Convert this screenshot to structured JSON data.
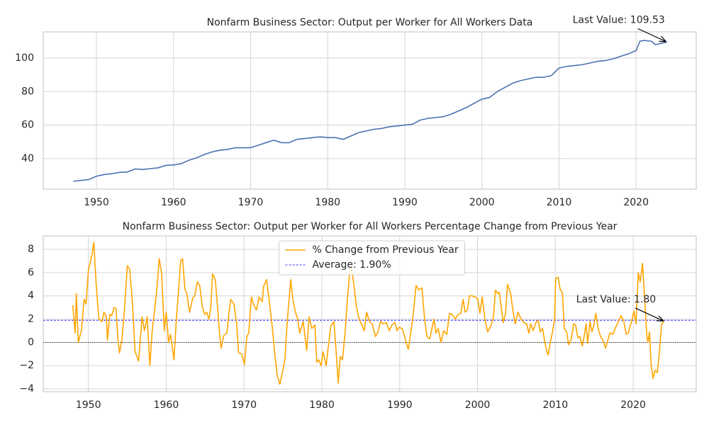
{
  "chart_data": [
    {
      "type": "line",
      "title": "Nonfarm Business Sector: Output per Worker for All Workers Data",
      "x": [
        1947,
        1948,
        1949,
        1950,
        1951,
        1952,
        1953,
        1954,
        1955,
        1956,
        1957,
        1958,
        1959,
        1960,
        1961,
        1962,
        1963,
        1964,
        1965,
        1966,
        1967,
        1968,
        1969,
        1970,
        1971,
        1972,
        1973,
        1974,
        1975,
        1976,
        1977,
        1978,
        1979,
        1980,
        1981,
        1982,
        1983,
        1984,
        1985,
        1986,
        1987,
        1988,
        1989,
        1990,
        1991,
        1992,
        1993,
        1994,
        1995,
        1996,
        1997,
        1998,
        1999,
        2000,
        2001,
        2002,
        2003,
        2004,
        2005,
        2006,
        2007,
        2008,
        2009,
        2010,
        2011,
        2012,
        2013,
        2014,
        2015,
        2016,
        2017,
        2018,
        2019,
        2020,
        2020.5,
        2021,
        2022,
        2022.5,
        2023,
        2024
      ],
      "series": [
        {
          "color": "#4c72b0",
          "values": [
            26.5,
            27,
            27.5,
            29.5,
            30.5,
            31,
            31.8,
            32,
            33.8,
            33.5,
            34,
            34.5,
            36,
            36.2,
            37,
            39,
            40.5,
            42.5,
            44,
            45,
            45.5,
            46.5,
            46.5,
            46.5,
            48,
            49.5,
            51,
            49.5,
            49.5,
            51.5,
            52,
            52.5,
            53,
            52.5,
            52.5,
            51.5,
            53.5,
            55.5,
            56.5,
            57.5,
            58,
            59,
            59.5,
            60,
            60.5,
            63,
            64,
            64.5,
            65,
            66.5,
            68.5,
            70.5,
            73,
            75.5,
            76.5,
            80,
            82.5,
            85,
            86.5,
            87.5,
            88.5,
            88.5,
            89.5,
            94,
            95,
            95.5,
            96,
            97,
            98,
            98.5,
            99.5,
            101,
            102.5,
            104.5,
            110,
            110.5,
            110,
            108,
            108.5,
            109.53
          ]
        }
      ],
      "xlim": [
        1943.1,
        2027.8
      ],
      "ylim": [
        21.8,
        115.6
      ],
      "xticks": [
        1950,
        1960,
        1970,
        1980,
        1990,
        2000,
        2010,
        2020
      ],
      "yticks": [
        40,
        60,
        80,
        100
      ],
      "grid": true,
      "annotations": [
        {
          "text": "Last Value: 109.53",
          "x": 2024,
          "y": 109.53
        }
      ]
    },
    {
      "type": "line",
      "title": "Nonfarm Business Sector: Output per Worker for All Workers Percentage Change from Previous Year",
      "x": [
        1948.0,
        1948.3,
        1948.45,
        1948.7,
        1949.1,
        1949.45,
        1949.7,
        1950.0,
        1950.45,
        1950.7,
        1951.0,
        1951.35,
        1951.75,
        1952.0,
        1952.3,
        1952.45,
        1952.75,
        1953.0,
        1953.3,
        1953.55,
        1953.8,
        1954.0,
        1954.3,
        1954.65,
        1955.0,
        1955.3,
        1955.65,
        1956.0,
        1956.45,
        1956.9,
        1957.2,
        1957.55,
        1957.9,
        1958.2,
        1958.55,
        1958.85,
        1959.1,
        1959.4,
        1959.75,
        1960.0,
        1960.3,
        1960.55,
        1961.0,
        1961.3,
        1961.65,
        1961.85,
        1962.1,
        1962.4,
        1962.65,
        1963.0,
        1963.4,
        1963.65,
        1964.0,
        1964.3,
        1964.65,
        1964.95,
        1965.2,
        1965.5,
        1965.75,
        1965.95,
        1966.3,
        1966.6,
        1966.85,
        1967.05,
        1967.4,
        1967.8,
        1968.05,
        1968.3,
        1968.7,
        1969.05,
        1969.3,
        1969.7,
        1970.05,
        1970.35,
        1970.6,
        1970.95,
        1971.25,
        1971.6,
        1971.95,
        1972.35,
        1972.5,
        1972.9,
        1973.25,
        1973.6,
        1973.95,
        1974.25,
        1974.6,
        1974.95,
        1975.25,
        1975.5,
        1975.7,
        1976.0,
        1976.25,
        1976.6,
        1976.9,
        1977.15,
        1977.6,
        1978.05,
        1978.35,
        1978.7,
        1979.1,
        1979.35,
        1979.6,
        1979.9,
        1980.15,
        1980.55,
        1980.8,
        1981.15,
        1981.55,
        1981.8,
        1982.1,
        1982.35,
        1982.65,
        1983.0,
        1983.25,
        1983.55,
        1983.8,
        1984.1,
        1984.45,
        1984.8,
        1985.2,
        1985.45,
        1985.75,
        1986.1,
        1986.45,
        1986.9,
        1987.2,
        1987.55,
        1987.9,
        1988.3,
        1988.65,
        1989.0,
        1989.4,
        1989.65,
        1989.9,
        1990.3,
        1990.65,
        1990.85,
        1991.1,
        1991.45,
        1991.75,
        1992.1,
        1992.45,
        1992.85,
        1993.2,
        1993.5,
        1993.85,
        1994.4,
        1994.65,
        1994.95,
        1995.3,
        1995.65,
        1996.05,
        1996.4,
        1996.75,
        1997.15,
        1997.5,
        1997.85,
        1998.15,
        1998.4,
        1998.7,
        1998.95,
        1999.3,
        1999.7,
        2000.05,
        2000.3,
        2000.6,
        2000.95,
        2001.3,
        2001.7,
        2002.05,
        2002.3,
        2002.6,
        2002.8,
        2003.05,
        2003.3,
        2003.6,
        2003.85,
        2004.25,
        2004.6,
        2004.85,
        2005.2,
        2005.6,
        2005.95,
        2006.3,
        2006.6,
        2006.85,
        2007.15,
        2007.5,
        2007.8,
        2008.05,
        2008.35,
        2008.7,
        2009.05,
        2009.35,
        2009.6,
        2009.9,
        2010.05,
        2010.35,
        2010.6,
        2010.9,
        2011.15,
        2011.45,
        2011.7,
        2012.05,
        2012.35,
        2012.6,
        2012.9,
        2013.15,
        2013.45,
        2013.7,
        2013.95,
        2014.15,
        2014.45,
        2014.7,
        2014.95,
        2015.2,
        2015.5,
        2015.8,
        2016.1,
        2016.45,
        2016.75,
        2017.0,
        2017.4,
        2017.75,
        2018.1,
        2018.45,
        2018.8,
        2019.1,
        2019.35,
        2019.75,
        2020.1,
        2020.35,
        2020.65,
        2020.9,
        2021.2,
        2021.45,
        2021.75,
        2021.9,
        2022.1,
        2022.3,
        2022.55,
        2022.8,
        2023.1,
        2023.35,
        2023.65,
        2024.0
      ],
      "series": [
        {
          "name": "% Change from Previous Year",
          "color": "#ffa500",
          "values": [
            3.2,
            0.8,
            4.2,
            0,
            1,
            3.7,
            3.3,
            6.2,
            7.5,
            8.6,
            5,
            2,
            1.8,
            2.6,
            2.2,
            0.2,
            2.4,
            2.3,
            3,
            2.9,
            0.2,
            -0.9,
            0.2,
            3,
            6.6,
            6.3,
            3.5,
            -0.8,
            -1.6,
            2.2,
            1,
            2.2,
            -2,
            1,
            3,
            5,
            7.2,
            6,
            1,
            2.6,
            0,
            0.7,
            -1.5,
            2,
            5,
            7,
            7.2,
            4.6,
            4.2,
            2.6,
            3.8,
            4,
            5.2,
            4.9,
            3,
            2.4,
            2.6,
            2,
            3.2,
            5.9,
            5.4,
            3,
            0.8,
            -0.5,
            0.6,
            0.8,
            2.5,
            3.7,
            3.3,
            1.6,
            -0.9,
            -1,
            -1.9,
            0.5,
            0.8,
            3.9,
            3.2,
            2.8,
            3.9,
            3.5,
            4.8,
            5.4,
            3.5,
            1.5,
            -1,
            -2.8,
            -3.6,
            -2.5,
            -1.5,
            1.3,
            3,
            5.4,
            3.8,
            2.6,
            2,
            0.8,
            1.8,
            -0.7,
            2.2,
            1.2,
            1.5,
            -1.7,
            -1.5,
            -2,
            -0.8,
            -2,
            -0.5,
            1.4,
            1.8,
            -0.5,
            -3.5,
            -1.2,
            -1.5,
            1,
            3.5,
            5.8,
            6.5,
            5,
            3,
            2,
            1.4,
            1,
            2.6,
            1.8,
            1.6,
            0.5,
            0.9,
            1.8,
            1.6,
            1.7,
            1,
            1.5,
            1.7,
            1,
            1.3,
            1.2,
            0.5,
            -0.1,
            -0.6,
            1,
            2.5,
            4.9,
            4.5,
            4.7,
            2,
            0.5,
            0.3,
            2,
            0.8,
            1.2,
            0,
            1,
            0.7,
            2.5,
            2.4,
            2,
            2.4,
            2.5,
            3.7,
            2.6,
            2.8,
            4,
            4,
            3.9,
            3.7,
            2.5,
            3.9,
            2,
            0.9,
            1.4,
            2.2,
            4.5,
            4.2,
            4.3,
            3,
            1.7,
            2.5,
            5,
            4.2,
            2.5,
            1.6,
            2.6,
            2,
            1.7,
            1.6,
            0.8,
            1.6,
            1,
            1.7,
            1.9,
            0.9,
            1.2,
            -0.2,
            -1.1,
            0,
            0.8,
            2,
            5.5,
            5.6,
            4.6,
            4.3,
            1.2,
            0.9,
            -0.2,
            0.3,
            1.6,
            1.5,
            0.4,
            0.5,
            -0.3,
            0.5,
            1.6,
            -0.1,
            1.8,
            0.9,
            1.5,
            2.5,
            1.2,
            0.5,
            0.2,
            -0.5,
            0.2,
            0.8,
            0.7,
            1.3,
            1.8,
            2.3,
            1.8,
            0.7,
            0.8,
            1.7,
            2.7,
            1.6,
            6,
            5.2,
            6.8,
            4,
            0.6,
            0,
            0.9,
            -1.9,
            -3.1,
            -2.4,
            -2.6,
            -1,
            1.6,
            1.8
          ]
        }
      ],
      "hlines": [
        {
          "name": "Average: 1.90%",
          "value": 1.9,
          "color": "#0000ff",
          "style": "dashed"
        },
        {
          "value": 0,
          "color": "#000000",
          "style": "dotted"
        }
      ],
      "legend": "upper center",
      "xlim": [
        1944.2,
        2028.1
      ],
      "ylim": [
        -4.24,
        9.16
      ],
      "xticks": [
        1950,
        1960,
        1970,
        1980,
        1990,
        2000,
        2010,
        2020
      ],
      "yticks": [
        {
          "value": -4,
          "label": "−4"
        },
        {
          "value": -2,
          "label": "−2"
        },
        0,
        2,
        4,
        6,
        8
      ],
      "grid": true,
      "annotations": [
        {
          "text": "Last Value: 1.80",
          "x": 2024.0,
          "y": 1.8
        }
      ]
    }
  ]
}
